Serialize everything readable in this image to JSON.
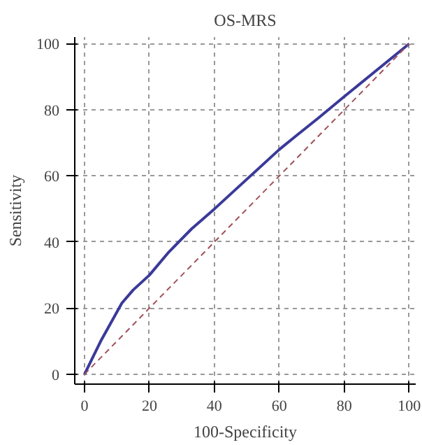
{
  "chart_data": {
    "type": "line",
    "title": "OS-MRS",
    "xlabel": "100-Specificity",
    "ylabel": "Sensitivity",
    "series": [
      {
        "color": "#3a3a9a",
        "x": [
          0,
          5,
          11.5,
          15,
          20,
          26,
          33,
          40,
          50,
          60,
          65,
          72,
          80,
          90,
          100
        ],
        "values": [
          0,
          10,
          21.5,
          25.5,
          30,
          37,
          44,
          50,
          59,
          68,
          72,
          77.5,
          84,
          92,
          100
        ],
        "line_style": "solid"
      },
      {
        "color": "#a0505a",
        "x": [
          0,
          100
        ],
        "values": [
          0,
          100
        ],
        "line_style": "dashed"
      }
    ],
    "xlim": [
      -3,
      102
    ],
    "ylim": [
      -3,
      102
    ],
    "xticks": [
      0,
      20,
      40,
      60,
      80,
      100
    ],
    "yticks": [
      0,
      20,
      40,
      60,
      80,
      100
    ],
    "grid": true,
    "marker": "none"
  }
}
